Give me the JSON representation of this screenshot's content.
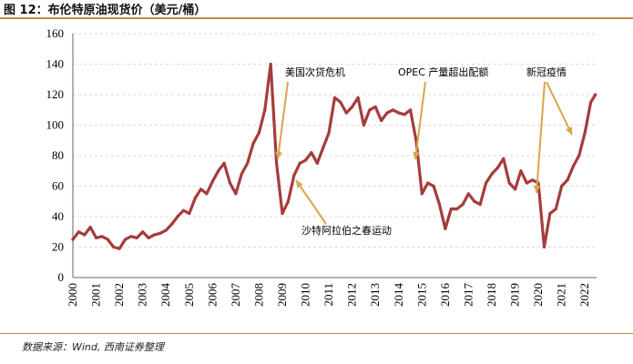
{
  "title": "图 12：布伦特原油现货价（美元/桶）",
  "source": "数据来源：Wind, 西南证券整理",
  "colors": {
    "line": "#a63c3c",
    "arrow": "#d8a54a",
    "grid": "#d9d9d9",
    "axis": "#666666"
  },
  "chart_data": {
    "type": "line",
    "title": "图 12：布伦特原油现货价（美元/桶）",
    "xlabel": "",
    "ylabel": "",
    "xlim": [
      2000,
      2022.5
    ],
    "ylim": [
      0,
      160
    ],
    "yticks": [
      0,
      20,
      40,
      60,
      80,
      100,
      120,
      140,
      160
    ],
    "xticks": [
      "2000",
      "2001",
      "2002",
      "2003",
      "2004",
      "2005",
      "2006",
      "2007",
      "2008",
      "2009",
      "2010",
      "2011",
      "2012",
      "2013",
      "2014",
      "2015",
      "2016",
      "2017",
      "2018",
      "2019",
      "2020",
      "2021",
      "2022"
    ],
    "grid": "horizontal dashed",
    "series": [
      {
        "x": [
          2000.0,
          2000.25,
          2000.5,
          2000.75,
          2001.0,
          2001.25,
          2001.5,
          2001.75,
          2002.0,
          2002.25,
          2002.5,
          2002.75,
          2003.0,
          2003.25,
          2003.5,
          2003.75,
          2004.0,
          2004.25,
          2004.5,
          2004.75,
          2005.0,
          2005.25,
          2005.5,
          2005.75,
          2006.0,
          2006.25,
          2006.5,
          2006.75,
          2007.0,
          2007.25,
          2007.5,
          2007.75,
          2008.0,
          2008.25,
          2008.5,
          2008.75,
          2009.0,
          2009.25,
          2009.5,
          2009.75,
          2010.0,
          2010.25,
          2010.5,
          2010.75,
          2011.0,
          2011.25,
          2011.5,
          2011.75,
          2012.0,
          2012.25,
          2012.5,
          2012.75,
          2013.0,
          2013.25,
          2013.5,
          2013.75,
          2014.0,
          2014.25,
          2014.5,
          2014.75,
          2015.0,
          2015.25,
          2015.5,
          2015.75,
          2016.0,
          2016.25,
          2016.5,
          2016.75,
          2017.0,
          2017.25,
          2017.5,
          2017.75,
          2018.0,
          2018.25,
          2018.5,
          2018.75,
          2019.0,
          2019.25,
          2019.5,
          2019.75,
          2020.0,
          2020.25,
          2020.5,
          2020.75,
          2021.0,
          2021.25,
          2021.5,
          2021.75,
          2022.0,
          2022.25,
          2022.45
        ],
        "values": [
          25,
          30,
          28,
          33,
          26,
          27,
          25,
          20,
          19,
          25,
          27,
          26,
          30,
          26,
          28,
          29,
          31,
          35,
          40,
          44,
          42,
          52,
          58,
          55,
          63,
          70,
          75,
          62,
          55,
          68,
          75,
          88,
          95,
          110,
          140,
          75,
          42,
          50,
          67,
          75,
          77,
          82,
          75,
          85,
          95,
          118,
          115,
          108,
          112,
          118,
          100,
          110,
          112,
          103,
          108,
          110,
          108,
          107,
          110,
          90,
          55,
          62,
          60,
          48,
          32,
          45,
          45,
          48,
          55,
          50,
          48,
          62,
          68,
          72,
          78,
          62,
          58,
          70,
          62,
          64,
          62,
          20,
          42,
          45,
          60,
          64,
          73,
          80,
          95,
          115,
          120
        ]
      }
    ],
    "annotations": [
      {
        "text": "美国次贷危机"
      },
      {
        "text": "OPEC 产量超出配额"
      },
      {
        "text": "新冠疫情"
      },
      {
        "text": "沙特阿拉伯之春运动"
      }
    ]
  }
}
